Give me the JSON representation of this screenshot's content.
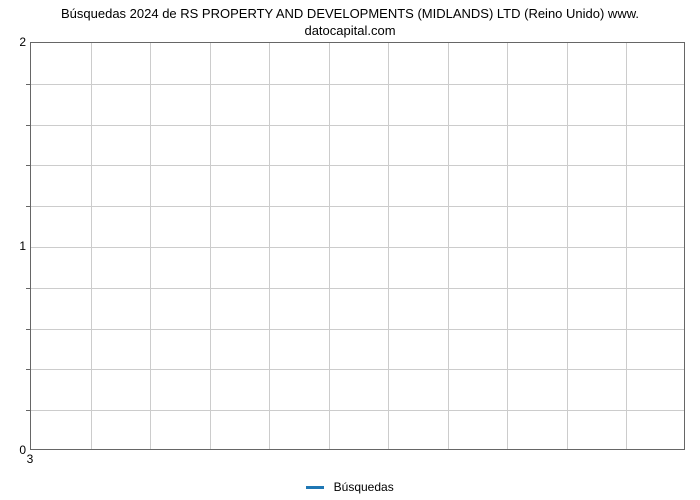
{
  "chart": {
    "type": "line",
    "title_line1": "Búsquedas 2024 de RS PROPERTY AND DEVELOPMENTS (MIDLANDS) LTD (Reino Unido) www.",
    "title_line2": "datocapital.com",
    "title_fontsize": 13,
    "title_color": "#000000",
    "background_color": "#ffffff",
    "plot_border_color": "#666666",
    "grid_color": "#cccccc",
    "tick_fontsize": 12,
    "tick_color": "#000000",
    "x_ticks": [
      "3"
    ],
    "y_ticks": [
      0,
      1,
      2
    ],
    "ylim": [
      0,
      2
    ],
    "y_grid_count": 10,
    "x_grid_count": 11,
    "minor_tick_count": 8,
    "series": [
      {
        "name": "Búsquedas",
        "color": "#1f77b4",
        "line_width": 3,
        "values": []
      }
    ],
    "legend": {
      "position": "bottom-center",
      "label": "Búsquedas",
      "swatch_color": "#1f77b4"
    }
  }
}
